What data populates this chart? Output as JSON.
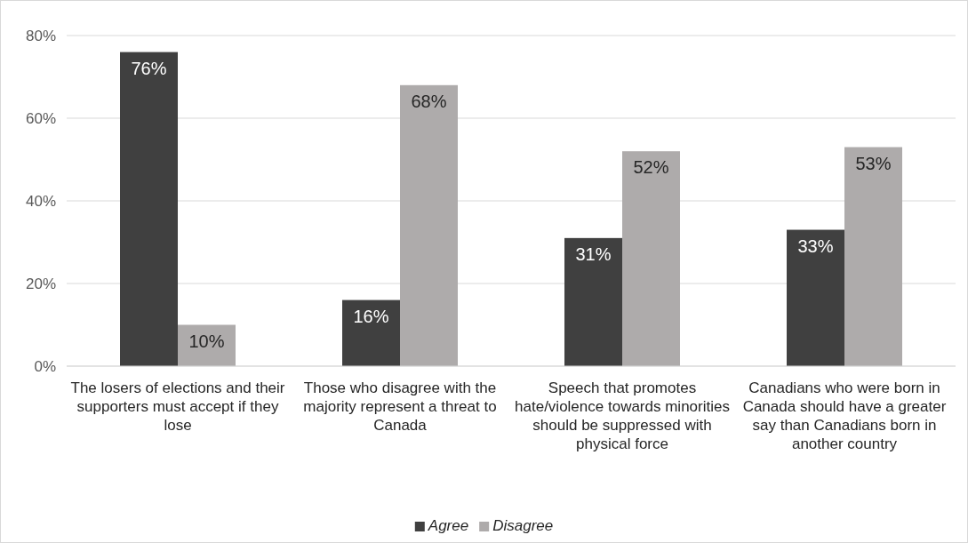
{
  "chart_data": {
    "type": "bar",
    "categories": [
      "The losers of elections and their supporters must accept if they lose",
      "Those who disagree with the majority represent a threat to Canada",
      "Speech that promotes hate/violence towards minorities should be suppressed with physical force",
      "Canadians who were born in Canada should have a greater say than Canadians born in another country"
    ],
    "series": [
      {
        "name": "Agree",
        "color": "#404040",
        "values": [
          76,
          16,
          31,
          33
        ],
        "value_labels": [
          "76%",
          "16%",
          "31%",
          "33%"
        ]
      },
      {
        "name": "Disagree",
        "color": "#aeabab",
        "values": [
          10,
          68,
          52,
          53
        ],
        "value_labels": [
          "10%",
          "68%",
          "52%",
          "53%"
        ]
      }
    ],
    "ylim": [
      0,
      80
    ],
    "yticks": [
      {
        "value": 0,
        "label": "0%"
      },
      {
        "value": 20,
        "label": "20%"
      },
      {
        "value": 40,
        "label": "40%"
      },
      {
        "value": 60,
        "label": "60%"
      },
      {
        "value": 80,
        "label": "80%"
      }
    ],
    "grid": "y",
    "legend": "bottom"
  }
}
